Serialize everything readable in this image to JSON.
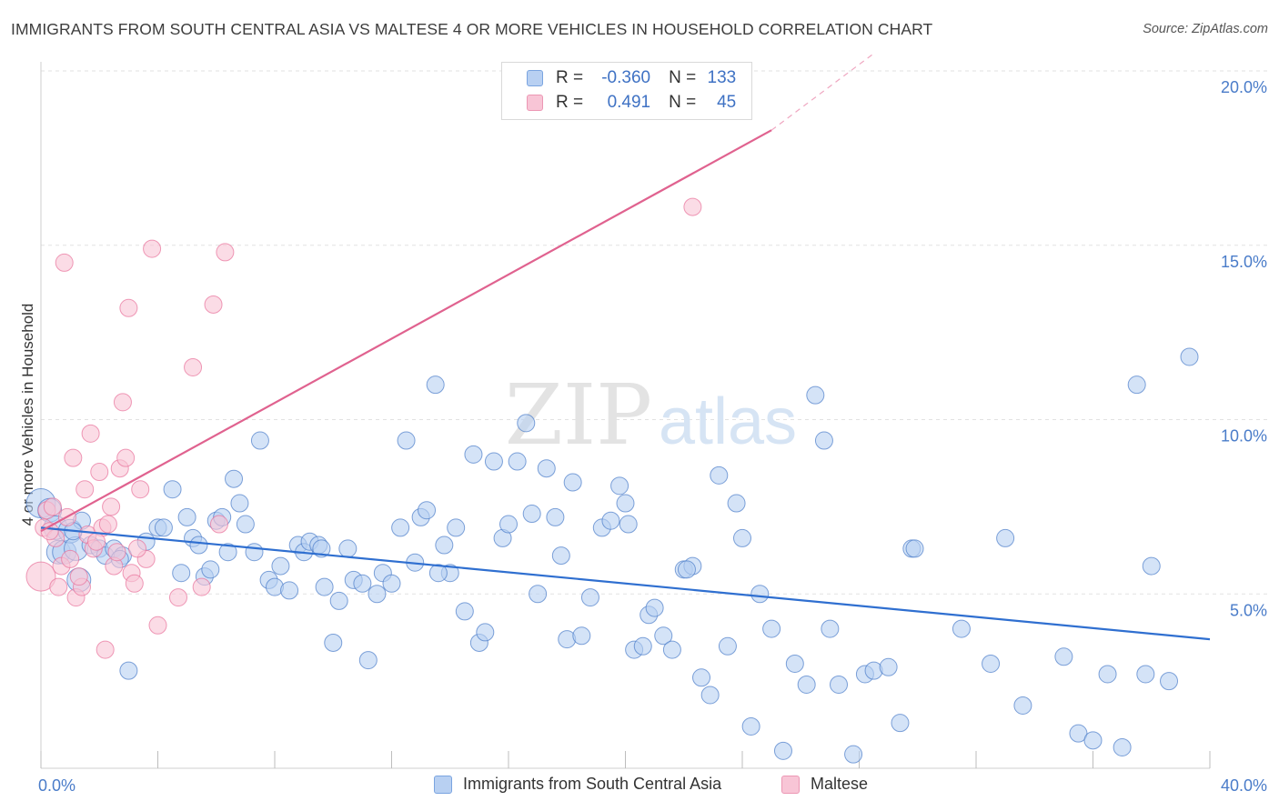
{
  "title": "IMMIGRANTS FROM SOUTH CENTRAL ASIA VS MALTESE 4 OR MORE VEHICLES IN HOUSEHOLD CORRELATION CHART",
  "source": "Source: ZipAtlas.com",
  "watermark": {
    "zip": "ZIP",
    "atlas": "atlas"
  },
  "stats": [
    {
      "r_label": "R =",
      "r_value": "-0.360",
      "n_label": "N =",
      "n_value": "133",
      "color": "#4a7cc9"
    },
    {
      "r_label": "R =",
      "r_value": "0.491",
      "n_label": "N =",
      "n_value": "45",
      "color": "#e8709a"
    }
  ],
  "legend": {
    "blue_label": "Immigrants from South Central Asia",
    "pink_label": "Maltese"
  },
  "chart_data": {
    "type": "scatter",
    "title": "IMMIGRANTS FROM SOUTH CENTRAL ASIA VS MALTESE 4 OR MORE VEHICLES IN HOUSEHOLD CORRELATION CHART",
    "xlabel": "",
    "ylabel": "4 or more Vehicles in Household",
    "xlim": [
      0,
      40
    ],
    "ylim": [
      0,
      20
    ],
    "x_tick_labels": [
      "0.0%",
      "40.0%"
    ],
    "y_ticks": [
      5,
      10,
      15,
      20
    ],
    "y_tick_labels": [
      "5.0%",
      "10.0%",
      "15.0%",
      "20.0%"
    ],
    "grid": "horizontal dashed",
    "legend_position": "bottom-center",
    "series": [
      {
        "name": "Immigrants from South Central Asia",
        "color": "#4a7cc9",
        "fill": "#b8d0f2",
        "trend": {
          "x": [
            0,
            40
          ],
          "y": [
            6.9,
            3.7
          ]
        },
        "points": [
          [
            0.0,
            7.6
          ],
          [
            0.3,
            7.4
          ],
          [
            0.5,
            6.9
          ],
          [
            0.6,
            6.2
          ],
          [
            0.8,
            6.2
          ],
          [
            1.0,
            6.8
          ],
          [
            1.2,
            6.3
          ],
          [
            1.3,
            5.4
          ],
          [
            1.4,
            7.1
          ],
          [
            1.7,
            6.4
          ],
          [
            2.0,
            6.3
          ],
          [
            2.2,
            6.1
          ],
          [
            2.5,
            6.3
          ],
          [
            2.8,
            6.1
          ],
          [
            3.0,
            2.8
          ],
          [
            3.6,
            6.5
          ],
          [
            4.0,
            6.9
          ],
          [
            4.2,
            6.9
          ],
          [
            4.5,
            8.0
          ],
          [
            4.8,
            5.6
          ],
          [
            5.0,
            7.2
          ],
          [
            5.2,
            6.6
          ],
          [
            5.4,
            6.4
          ],
          [
            5.6,
            5.5
          ],
          [
            5.8,
            5.7
          ],
          [
            6.0,
            7.1
          ],
          [
            6.2,
            7.2
          ],
          [
            6.4,
            6.2
          ],
          [
            6.6,
            8.3
          ],
          [
            6.8,
            7.6
          ],
          [
            7.0,
            7.0
          ],
          [
            7.3,
            6.2
          ],
          [
            7.5,
            9.4
          ],
          [
            7.8,
            5.4
          ],
          [
            8.0,
            5.2
          ],
          [
            8.2,
            5.8
          ],
          [
            8.5,
            5.1
          ],
          [
            8.8,
            6.4
          ],
          [
            9.0,
            6.2
          ],
          [
            9.2,
            6.5
          ],
          [
            9.5,
            6.4
          ],
          [
            9.7,
            5.2
          ],
          [
            10.0,
            3.6
          ],
          [
            10.2,
            4.8
          ],
          [
            10.5,
            6.3
          ],
          [
            10.7,
            5.4
          ],
          [
            11.0,
            5.3
          ],
          [
            11.2,
            3.1
          ],
          [
            11.5,
            5.0
          ],
          [
            11.7,
            5.6
          ],
          [
            12.0,
            5.3
          ],
          [
            12.3,
            6.9
          ],
          [
            12.5,
            9.4
          ],
          [
            12.8,
            5.9
          ],
          [
            13.0,
            7.2
          ],
          [
            13.2,
            7.4
          ],
          [
            13.5,
            11.0
          ],
          [
            13.8,
            6.4
          ],
          [
            14.0,
            5.6
          ],
          [
            14.2,
            6.9
          ],
          [
            14.5,
            4.5
          ],
          [
            14.8,
            9.0
          ],
          [
            15.0,
            3.6
          ],
          [
            15.2,
            3.9
          ],
          [
            15.5,
            8.8
          ],
          [
            15.8,
            6.6
          ],
          [
            16.0,
            7.0
          ],
          [
            16.3,
            8.8
          ],
          [
            16.6,
            9.9
          ],
          [
            16.8,
            7.3
          ],
          [
            17.0,
            5.0
          ],
          [
            17.3,
            8.6
          ],
          [
            17.6,
            7.2
          ],
          [
            17.8,
            6.1
          ],
          [
            18.0,
            3.7
          ],
          [
            18.2,
            8.2
          ],
          [
            18.5,
            3.8
          ],
          [
            18.8,
            4.9
          ],
          [
            19.2,
            6.9
          ],
          [
            19.5,
            7.1
          ],
          [
            19.8,
            8.1
          ],
          [
            20.0,
            7.6
          ],
          [
            20.3,
            3.4
          ],
          [
            20.6,
            3.5
          ],
          [
            20.8,
            4.4
          ],
          [
            21.0,
            4.6
          ],
          [
            21.3,
            3.8
          ],
          [
            21.6,
            3.4
          ],
          [
            22.0,
            5.7
          ],
          [
            22.3,
            5.8
          ],
          [
            22.6,
            2.6
          ],
          [
            22.9,
            2.1
          ],
          [
            23.2,
            8.4
          ],
          [
            23.5,
            3.5
          ],
          [
            23.8,
            7.6
          ],
          [
            24.0,
            6.6
          ],
          [
            24.3,
            1.2
          ],
          [
            24.6,
            5.0
          ],
          [
            25.0,
            4.0
          ],
          [
            25.4,
            0.5
          ],
          [
            25.8,
            3.0
          ],
          [
            26.2,
            2.4
          ],
          [
            26.5,
            10.7
          ],
          [
            26.8,
            9.4
          ],
          [
            27.0,
            4.0
          ],
          [
            27.3,
            2.4
          ],
          [
            27.8,
            0.4
          ],
          [
            28.2,
            2.7
          ],
          [
            28.5,
            2.8
          ],
          [
            29.0,
            2.9
          ],
          [
            29.4,
            1.3
          ],
          [
            29.8,
            6.3
          ],
          [
            31.5,
            4.0
          ],
          [
            32.5,
            3.0
          ],
          [
            33.0,
            6.6
          ],
          [
            33.6,
            1.8
          ],
          [
            35.0,
            3.2
          ],
          [
            35.5,
            1.0
          ],
          [
            36.0,
            0.8
          ],
          [
            36.5,
            2.7
          ],
          [
            37.0,
            0.6
          ],
          [
            37.5,
            11.0
          ],
          [
            37.8,
            2.7
          ],
          [
            38.0,
            5.8
          ],
          [
            38.6,
            2.5
          ],
          [
            39.3,
            11.8
          ],
          [
            1.1,
            6.8
          ],
          [
            2.7,
            6.0
          ],
          [
            9.6,
            6.3
          ],
          [
            13.6,
            5.6
          ],
          [
            20.1,
            7.0
          ],
          [
            22.1,
            5.7
          ],
          [
            29.9,
            6.3
          ]
        ]
      },
      {
        "name": "Maltese",
        "color": "#e8709a",
        "fill": "#f8c5d6",
        "trend": {
          "x": [
            0,
            25
          ],
          "y": [
            6.8,
            18.3
          ],
          "dashed_extension": {
            "x": [
              25,
              28.5
            ],
            "y": [
              18.3,
              20.5
            ]
          }
        },
        "points": [
          [
            0.0,
            5.5
          ],
          [
            0.1,
            6.9
          ],
          [
            0.2,
            7.4
          ],
          [
            0.4,
            7.5
          ],
          [
            0.5,
            6.6
          ],
          [
            0.6,
            5.2
          ],
          [
            0.7,
            5.8
          ],
          [
            0.8,
            14.5
          ],
          [
            1.0,
            6.0
          ],
          [
            1.1,
            8.9
          ],
          [
            1.2,
            4.9
          ],
          [
            1.4,
            5.2
          ],
          [
            1.5,
            8.0
          ],
          [
            1.6,
            6.7
          ],
          [
            1.7,
            9.6
          ],
          [
            1.8,
            6.3
          ],
          [
            2.0,
            8.5
          ],
          [
            2.1,
            6.9
          ],
          [
            2.2,
            3.4
          ],
          [
            2.4,
            7.5
          ],
          [
            2.5,
            5.8
          ],
          [
            2.6,
            6.2
          ],
          [
            2.7,
            8.6
          ],
          [
            2.8,
            10.5
          ],
          [
            2.9,
            8.9
          ],
          [
            3.0,
            13.2
          ],
          [
            3.1,
            5.6
          ],
          [
            3.2,
            5.3
          ],
          [
            3.4,
            8.0
          ],
          [
            3.6,
            6.0
          ],
          [
            3.8,
            14.9
          ],
          [
            4.0,
            4.1
          ],
          [
            4.7,
            4.9
          ],
          [
            5.2,
            11.5
          ],
          [
            5.5,
            5.2
          ],
          [
            5.9,
            13.3
          ],
          [
            6.1,
            7.0
          ],
          [
            6.3,
            14.8
          ],
          [
            0.3,
            6.8
          ],
          [
            0.9,
            7.2
          ],
          [
            1.3,
            5.5
          ],
          [
            1.9,
            6.5
          ],
          [
            2.3,
            7.0
          ],
          [
            3.3,
            6.3
          ],
          [
            22.3,
            16.1
          ]
        ]
      }
    ]
  }
}
